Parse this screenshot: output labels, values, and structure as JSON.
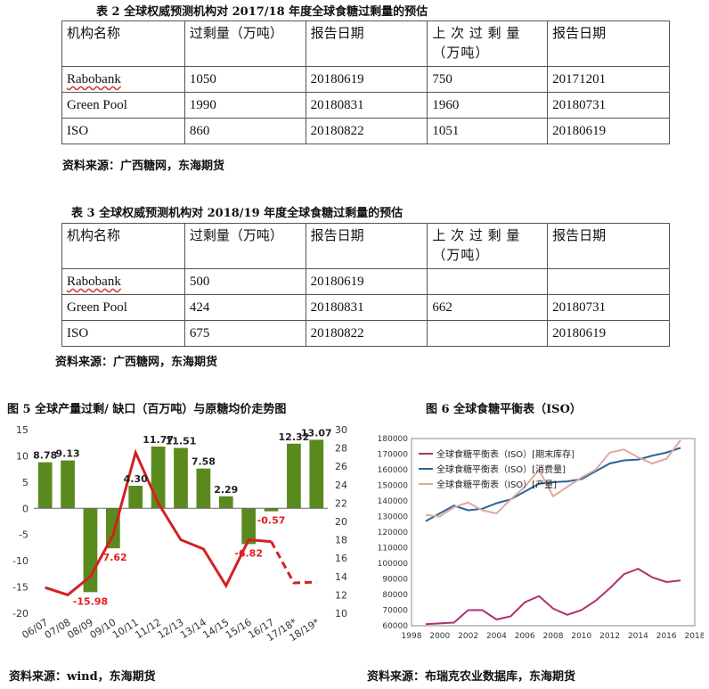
{
  "table2": {
    "caption": "表 2 全球权威预测机构对 2017/18 年度全球食糖过剩量的预估",
    "headers": [
      "机构名称",
      "过剩量（万吨）",
      "报告日期",
      "上 次 过 剩 量（万吨）",
      "报告日期"
    ],
    "rows": [
      [
        "Rabobank",
        "1050",
        "20180619",
        "750",
        "20171201"
      ],
      [
        "Green Pool",
        "1990",
        "20180831",
        "1960",
        "20180731"
      ],
      [
        "ISO",
        "860",
        "20180822",
        "1051",
        "20180619"
      ]
    ],
    "source": "资料来源：广西糖网，东海期货"
  },
  "table3": {
    "caption": "表 3 全球权威预测机构对 2018/19 年度全球食糖过剩量的预估",
    "headers": [
      "机构名称",
      "过剩量（万吨）",
      "报告日期",
      "上 次 过 剩 量（万吨）",
      "报告日期"
    ],
    "rows": [
      [
        "Rabobank",
        "500",
        "20180619",
        "",
        ""
      ],
      [
        "Green Pool",
        "424",
        "20180831",
        "662",
        "20180731"
      ],
      [
        "ISO",
        "675",
        "20180822",
        "",
        "20180619"
      ]
    ],
    "source": "资料来源：广西糖网，东海期货"
  },
  "figure5": {
    "title": "图 5 全球产量过剩/ 缺口（百万吨）与原糖均价走势图",
    "source": "资料来源：wind，东海期货"
  },
  "figure6": {
    "title": "图 6 全球食糖平衡表（ISO）",
    "source": "资料来源：布瑞克农业数据库，东海期货"
  },
  "chart_data": [
    {
      "type": "bar",
      "categories": [
        "06/07",
        "07/08",
        "08/09",
        "09/10",
        "10/11",
        "11/12",
        "12/13",
        "13/14",
        "14/15",
        "15/16",
        "16/17",
        "17/18*",
        "18/19*"
      ],
      "bar_values": [
        8.78,
        9.13,
        -15.98,
        -7.62,
        4.3,
        11.77,
        11.51,
        7.58,
        2.29,
        -6.82,
        -0.57,
        12.32,
        13.07
      ],
      "data_labels": [
        "8.78",
        "9.13",
        "-15.98",
        "-7.62",
        "4.30",
        "11.77",
        "11.51",
        "7.58",
        "2.29",
        "-6.82",
        "-0.57",
        "12.32",
        "13.07"
      ],
      "negative_label_color": "#e02020",
      "bar_color": "#5a8a1e",
      "line_color": "#d42020",
      "line_values": [
        12.8,
        12.0,
        14.0,
        18.5,
        27.5,
        22.0,
        18.0,
        17.0,
        13.0,
        18.0,
        17.8,
        13.3,
        13.4
      ],
      "line_dashed_from_index": 10,
      "ylim_left": [
        -20,
        15
      ],
      "yticks_left": [
        -20,
        -15,
        -10,
        -5,
        0,
        5,
        10,
        15
      ],
      "ylim_right": [
        10,
        30
      ],
      "yticks_right": [
        10,
        12,
        14,
        16,
        18,
        20,
        22,
        24,
        26,
        28,
        30
      ],
      "grid": false
    },
    {
      "type": "line",
      "x": [
        1999,
        2000,
        2001,
        2002,
        2003,
        2004,
        2005,
        2006,
        2007,
        2008,
        2009,
        2010,
        2011,
        2012,
        2013,
        2014,
        2015,
        2016,
        2017
      ],
      "xticks": [
        1998,
        2000,
        2002,
        2004,
        2006,
        2008,
        2010,
        2012,
        2014,
        2016,
        2018
      ],
      "ylim": [
        60000,
        180000
      ],
      "yticks": [
        60000,
        70000,
        80000,
        90000,
        100000,
        110000,
        120000,
        130000,
        140000,
        150000,
        160000,
        170000,
        180000
      ],
      "legend": "top-left",
      "series": [
        {
          "name": "全球食糖平衡表（ISO）[期末库存]",
          "color": "#b03070",
          "values": [
            61000,
            61500,
            62000,
            70000,
            70000,
            64000,
            66000,
            75000,
            79000,
            71000,
            67000,
            70000,
            76000,
            84000,
            93000,
            96500,
            91000,
            88000,
            89000
          ]
        },
        {
          "name": "全球食糖平衡表（ISO）[消费量]",
          "color": "#2a6496",
          "values": [
            127000,
            132000,
            137000,
            134000,
            135000,
            138500,
            141000,
            146000,
            151000,
            152000,
            152500,
            154000,
            159000,
            164000,
            166000,
            166500,
            169000,
            171000,
            174000
          ]
        },
        {
          "name": "全球食糖平衡表（ISO）[产量]",
          "color": "#e0a8a0",
          "values": [
            131000,
            130000,
            136000,
            139000,
            134000,
            132000,
            141000,
            149000,
            160000,
            143000,
            149000,
            155000,
            160000,
            171000,
            173000,
            168000,
            164000,
            167000,
            179000
          ]
        }
      ]
    }
  ]
}
